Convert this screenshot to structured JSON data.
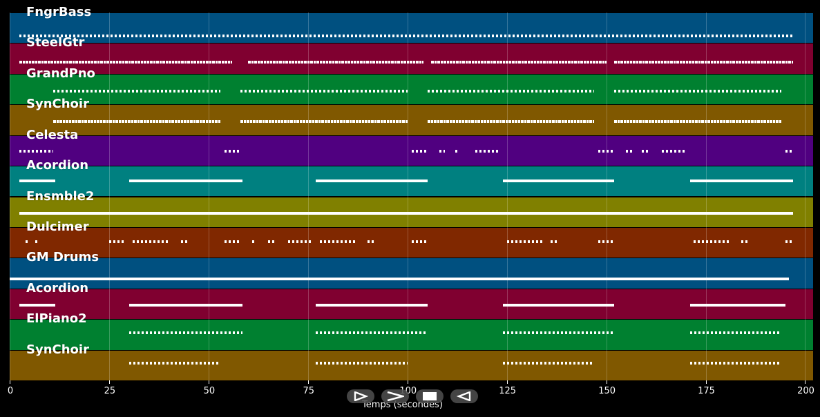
{
  "chart_data": {
    "type": "piano-roll",
    "title": "",
    "xlabel": "Temps (secondes)",
    "ylabel": "",
    "xlim": [
      0,
      202
    ],
    "x_ticks": [
      0,
      25,
      50,
      75,
      100,
      125,
      150,
      175,
      200
    ],
    "grid": true,
    "tracks": [
      {
        "name": "FngrBass",
        "color": "#005080",
        "note_y": 0.7,
        "segments": [
          [
            2.5,
            197
          ]
        ],
        "style": "sparse"
      },
      {
        "name": "SteelGtr",
        "color": "#800030",
        "note_y": 0.55,
        "segments": [
          [
            2.5,
            56
          ],
          [
            60,
            104
          ],
          [
            106,
            150
          ],
          [
            152,
            197
          ]
        ],
        "style": "normal"
      },
      {
        "name": "GrandPno",
        "color": "#008030",
        "note_y": 0.5,
        "segments": [
          [
            11,
            53
          ],
          [
            58,
            100
          ],
          [
            105,
            147
          ],
          [
            152,
            194
          ]
        ],
        "style": "sparse"
      },
      {
        "name": "SynChoir",
        "color": "#805800",
        "note_y": 0.48,
        "segments": [
          [
            11,
            53
          ],
          [
            58,
            100
          ],
          [
            105,
            147
          ],
          [
            152,
            194
          ]
        ],
        "style": "normal"
      },
      {
        "name": "Celesta",
        "color": "#500080",
        "note_y": 0.45,
        "segments": [
          [
            2.5,
            11
          ],
          [
            54,
            58
          ],
          [
            101,
            105
          ],
          [
            108,
            109.5
          ],
          [
            112,
            113
          ],
          [
            117,
            123
          ],
          [
            148,
            152
          ],
          [
            155,
            156.5
          ],
          [
            159,
            160.5
          ],
          [
            164,
            170
          ],
          [
            195,
            197
          ]
        ],
        "style": "sparse"
      },
      {
        "name": "Acordion",
        "color": "#008080",
        "note_y": 0.43,
        "segments": [
          [
            2.5,
            11.5
          ],
          [
            30,
            58.5
          ],
          [
            77,
            105
          ],
          [
            124,
            152
          ],
          [
            171,
            197
          ]
        ],
        "style": "dense"
      },
      {
        "name": "Ensmble2",
        "color": "#808000",
        "note_y": 0.48,
        "segments": [
          [
            2.5,
            197
          ]
        ],
        "style": "dense"
      },
      {
        "name": "Dulcimer",
        "color": "#802800",
        "note_y": 0.4,
        "segments": [
          [
            4,
            5
          ],
          [
            6.5,
            7
          ],
          [
            25,
            29
          ],
          [
            31,
            40
          ],
          [
            43,
            45
          ],
          [
            54,
            58
          ],
          [
            61,
            62
          ],
          [
            65,
            66.5
          ],
          [
            70,
            76
          ],
          [
            78,
            87
          ],
          [
            90,
            92
          ],
          [
            101,
            105
          ],
          [
            125,
            134
          ],
          [
            136,
            137.5
          ],
          [
            148,
            152
          ],
          [
            172,
            181
          ],
          [
            184,
            186
          ],
          [
            195,
            197
          ]
        ],
        "style": "sparse"
      },
      {
        "name": "GM Drums",
        "color": "#005080",
        "note_y": 0.62,
        "segments": [
          [
            0,
            196
          ]
        ],
        "style": "dense"
      },
      {
        "name": "Acordion",
        "color": "#800030",
        "note_y": 0.48,
        "segments": [
          [
            2.5,
            11.5
          ],
          [
            30,
            58.5
          ],
          [
            77,
            105
          ],
          [
            124,
            152
          ],
          [
            171,
            195
          ]
        ],
        "style": "dense"
      },
      {
        "name": "ElPiano2",
        "color": "#008030",
        "note_y": 0.38,
        "segments": [
          [
            30,
            58.5
          ],
          [
            77,
            105
          ],
          [
            124,
            152
          ],
          [
            171,
            194
          ]
        ],
        "style": "sparse"
      },
      {
        "name": "SynChoir",
        "color": "#805800",
        "note_y": 0.38,
        "segments": [
          [
            30,
            53
          ],
          [
            77,
            100
          ],
          [
            124,
            147
          ],
          [
            171,
            194
          ]
        ],
        "style": "sparse"
      }
    ]
  },
  "controls": {
    "play_label": "Play",
    "forward_label": "Forward",
    "stop_label": "Stop",
    "rewind_label": "Rewind"
  }
}
